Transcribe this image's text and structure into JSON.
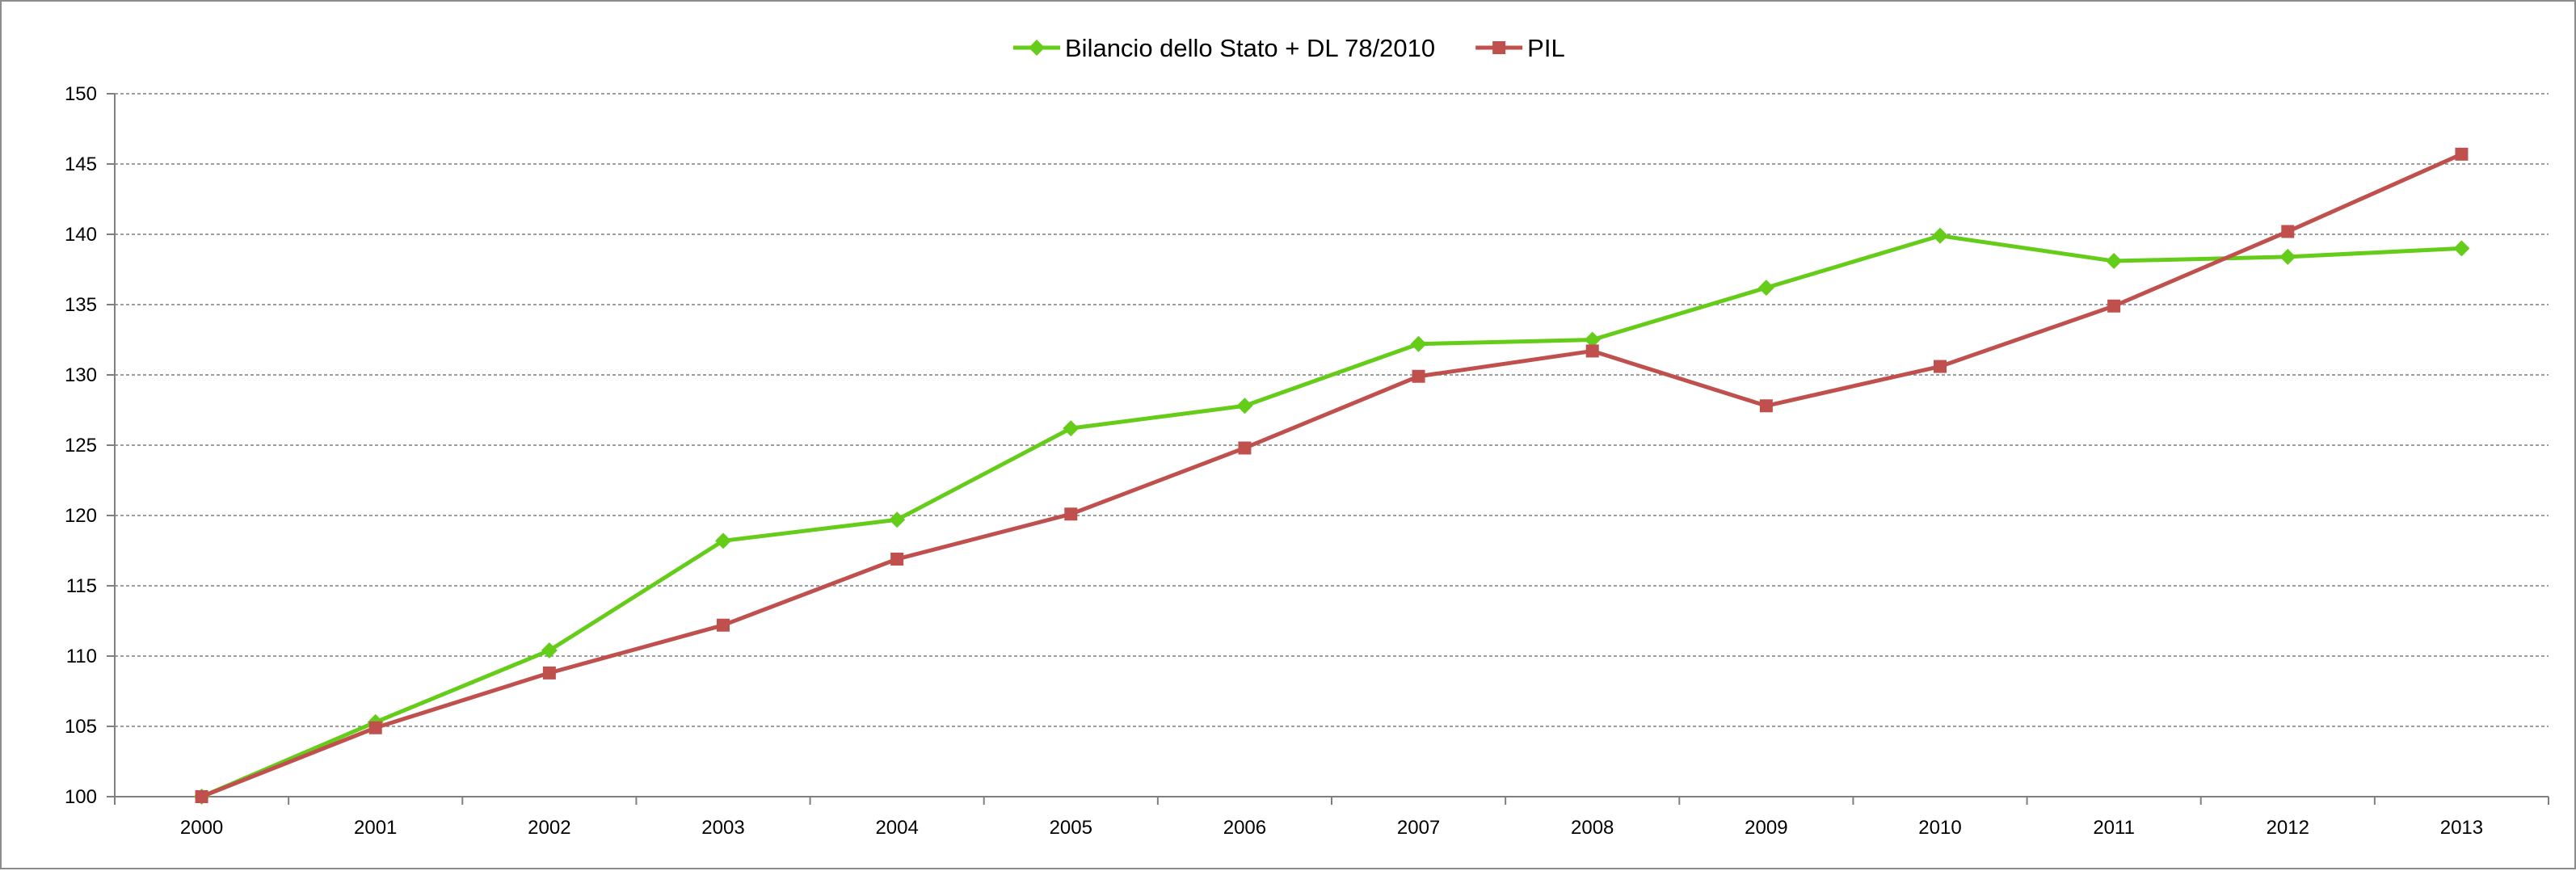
{
  "chart_data": {
    "type": "line",
    "title": "",
    "xlabel": "",
    "ylabel": "",
    "categories": [
      "2000",
      "2001",
      "2002",
      "2003",
      "2004",
      "2005",
      "2006",
      "2007",
      "2008",
      "2009",
      "2010",
      "2011",
      "2012",
      "2013"
    ],
    "ylim": [
      100,
      150
    ],
    "yticks": [
      100,
      105,
      110,
      115,
      120,
      125,
      130,
      135,
      140,
      145,
      150
    ],
    "grid": "horizontal dashed",
    "legend_position": "top-center",
    "series": [
      {
        "name": "Bilancio dello Stato + DL 78/2010",
        "color": "#66cc1a",
        "marker": "diamond",
        "values": [
          100.0,
          105.3,
          110.4,
          118.2,
          119.7,
          126.2,
          127.8,
          132.2,
          132.5,
          136.2,
          139.9,
          138.1,
          138.4,
          139.0
        ]
      },
      {
        "name": "PIL",
        "color": "#c0504d",
        "marker": "square",
        "values": [
          100.0,
          104.9,
          108.8,
          112.2,
          116.9,
          120.1,
          124.8,
          129.9,
          131.7,
          127.8,
          130.6,
          134.9,
          140.2,
          145.7
        ]
      }
    ]
  }
}
